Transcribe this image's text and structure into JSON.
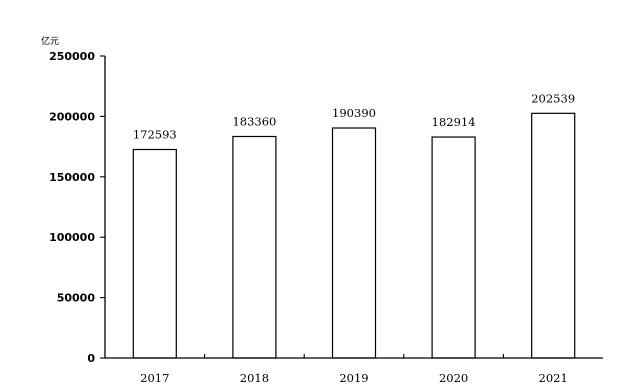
{
  "chart_data": {
    "type": "bar",
    "categories": [
      "2017",
      "2018",
      "2019",
      "2020",
      "2021"
    ],
    "values": [
      172593,
      183360,
      190390,
      182914,
      202539
    ],
    "data_labels": [
      "172593",
      "183360",
      "190390",
      "182914",
      "202539"
    ],
    "unit_label": "亿元",
    "ylim": [
      0,
      250000
    ],
    "y_ticks": [
      0,
      50000,
      100000,
      150000,
      200000,
      250000
    ],
    "y_tick_labels": [
      "0",
      "50000",
      "100000",
      "150000",
      "200000",
      "250000"
    ],
    "grid": false,
    "legend": "none",
    "bar_fill": "#ffffff",
    "bar_stroke": "#000000"
  }
}
